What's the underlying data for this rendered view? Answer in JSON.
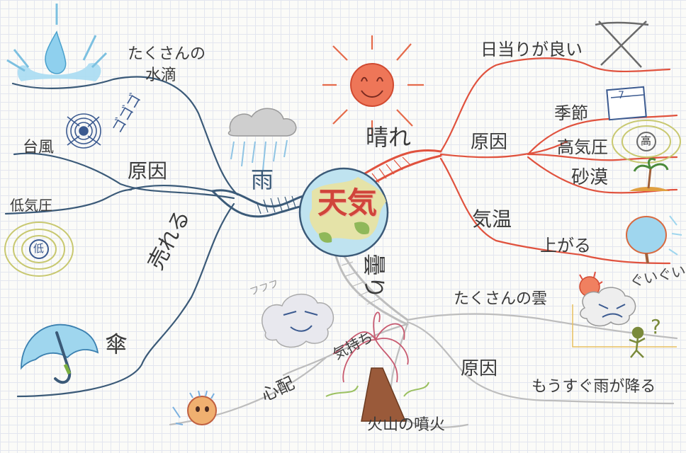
{
  "center": {
    "title": "天気"
  },
  "rain": {
    "label": "雨",
    "droplets": "たくさんの",
    "droplets2": "水滴",
    "cause": "原因",
    "typhoon": "台風",
    "low_pressure": "低気圧",
    "low_symbol": "低",
    "gogogo": "ゴゴゴ",
    "sells": "売れる",
    "umbrella": "傘"
  },
  "sunny": {
    "label": "晴れ",
    "sunshine": "日当りが良い",
    "cause": "原因",
    "season": "季節",
    "high_pressure": "高気圧",
    "high_symbol": "高",
    "desert": "砂漠",
    "temperature": "気温",
    "rises": "上がる",
    "calendar_num": "7"
  },
  "cloudy": {
    "label": "曇り",
    "many_clouds": "たくさんの雲",
    "cause": "原因",
    "about_to_rain": "もうすぐ雨が降る",
    "volcano": "火山の噴火",
    "feeling": "気持ち",
    "worry": "心配",
    "squeeze": "ぐいぐい",
    "snore": "フフフ",
    "question": "?"
  },
  "colors": {
    "rain": "#3b5a78",
    "sunny": "#e0523e",
    "cloudy": "#b8b8b8",
    "center_text": "#d0443a"
  },
  "icons": [
    "raindrop-splash-icon",
    "rain-cloud-icon",
    "typhoon-icon",
    "low-pressure-icon",
    "umbrella-icon",
    "sun-icon",
    "crossed-box-icon",
    "calendar-icon",
    "high-pressure-icon",
    "palm-tree-icon",
    "uchiwa-fan-icon",
    "sleepy-cloud-icon",
    "volcano-icon",
    "worried-face-icon",
    "angry-cloud-icon",
    "stick-figure-icon"
  ]
}
